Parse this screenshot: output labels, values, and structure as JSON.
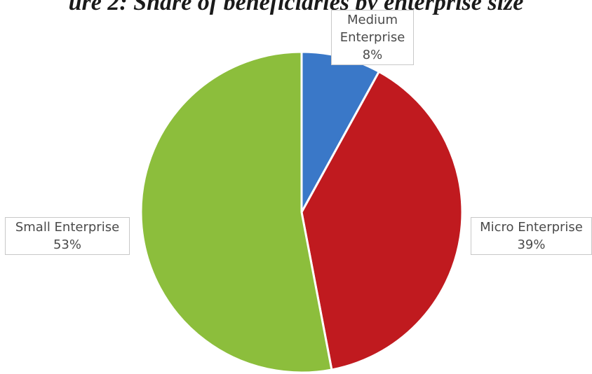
{
  "chart_data": {
    "type": "pie",
    "title": "ure 2: Share of beneficiaries by enterprise size",
    "slices": [
      {
        "name_lines": [
          "Medium",
          "Enterprise"
        ],
        "label": "Medium Enterprise",
        "value": 8,
        "value_label": "8%",
        "color": "#3a78c8"
      },
      {
        "name_lines": [
          "Micro Enterprise"
        ],
        "label": "Micro Enterprise",
        "value": 39,
        "value_label": "39%",
        "color": "#c01a1f"
      },
      {
        "name_lines": [
          "Small Enterprise"
        ],
        "label": "Small Enterprise",
        "value": 53,
        "value_label": "53%",
        "color": "#8cbe3c"
      }
    ],
    "start_angle_deg": 0,
    "direction": "clockwise",
    "legend": "none"
  }
}
